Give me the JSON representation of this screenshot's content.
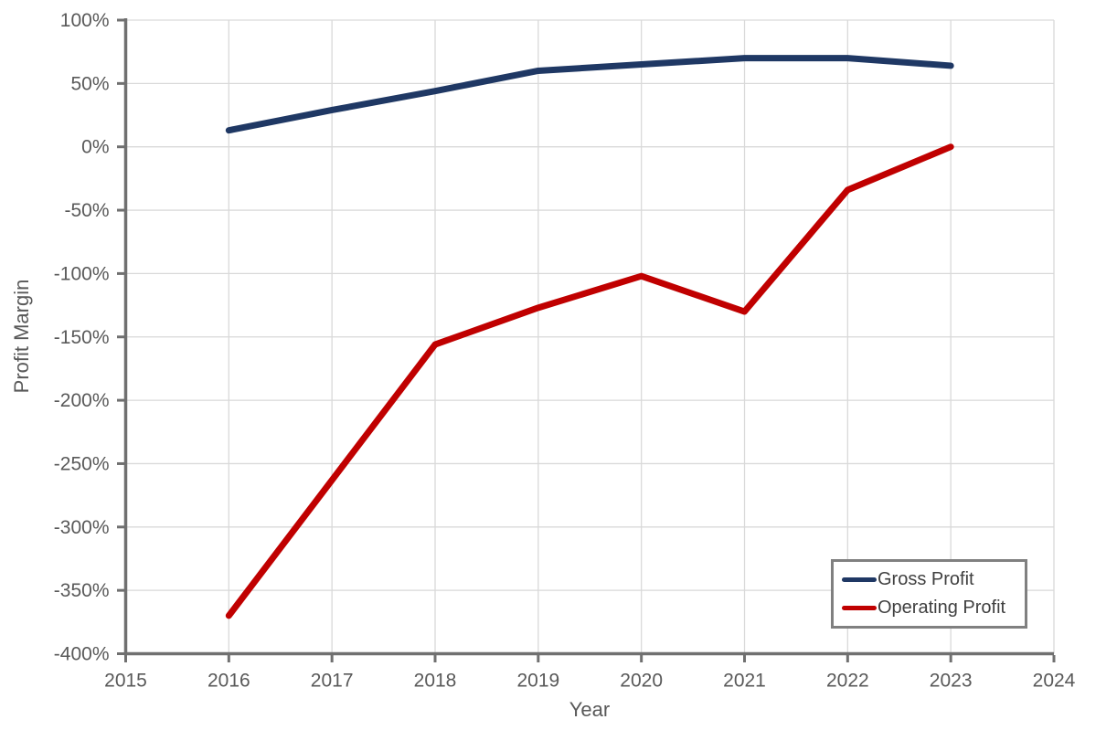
{
  "chart_data": {
    "type": "line",
    "title": "",
    "xlabel": "Year",
    "ylabel": "Profit Margin",
    "x": [
      2016,
      2017,
      2018,
      2019,
      2020,
      2021,
      2022,
      2023
    ],
    "series": [
      {
        "name": "Gross Profit",
        "color": "#1F3864",
        "values": [
          13,
          29,
          44,
          60,
          65,
          70,
          70,
          64
        ]
      },
      {
        "name": "Operating Profit",
        "color": "#C00000",
        "values": [
          -370,
          -263,
          -156,
          -127,
          -102,
          -130,
          -34,
          0
        ]
      }
    ],
    "xlim": [
      2015,
      2024
    ],
    "ylim": [
      -400,
      100
    ],
    "x_ticks": [
      {
        "value": 2015,
        "label": "2015"
      },
      {
        "value": 2016,
        "label": "2016"
      },
      {
        "value": 2017,
        "label": "2017"
      },
      {
        "value": 2018,
        "label": "2018"
      },
      {
        "value": 2019,
        "label": "2019"
      },
      {
        "value": 2020,
        "label": "2020"
      },
      {
        "value": 2021,
        "label": "2021"
      },
      {
        "value": 2022,
        "label": "2022"
      },
      {
        "value": 2023,
        "label": "2023"
      },
      {
        "value": 2024,
        "label": "2024"
      }
    ],
    "y_ticks": [
      {
        "value": 100,
        "label": "100%"
      },
      {
        "value": 50,
        "label": "50%"
      },
      {
        "value": 0,
        "label": "0%"
      },
      {
        "value": -50,
        "label": "-50%"
      },
      {
        "value": -100,
        "label": "-100%"
      },
      {
        "value": -150,
        "label": "-150%"
      },
      {
        "value": -200,
        "label": "-200%"
      },
      {
        "value": -250,
        "label": "-250%"
      },
      {
        "value": -300,
        "label": "-300%"
      },
      {
        "value": -350,
        "label": "-350%"
      },
      {
        "value": -400,
        "label": "-400%"
      }
    ],
    "grid": true,
    "legend_position": "bottom-right",
    "unit": "%"
  },
  "colors": {
    "axis_line": "#707070",
    "gridline": "#D9D9D9",
    "tick_label": "#595959",
    "axis_title": "#595959",
    "legend_text": "#404040",
    "legend_border": "#808080",
    "background": "#FFFFFF"
  }
}
